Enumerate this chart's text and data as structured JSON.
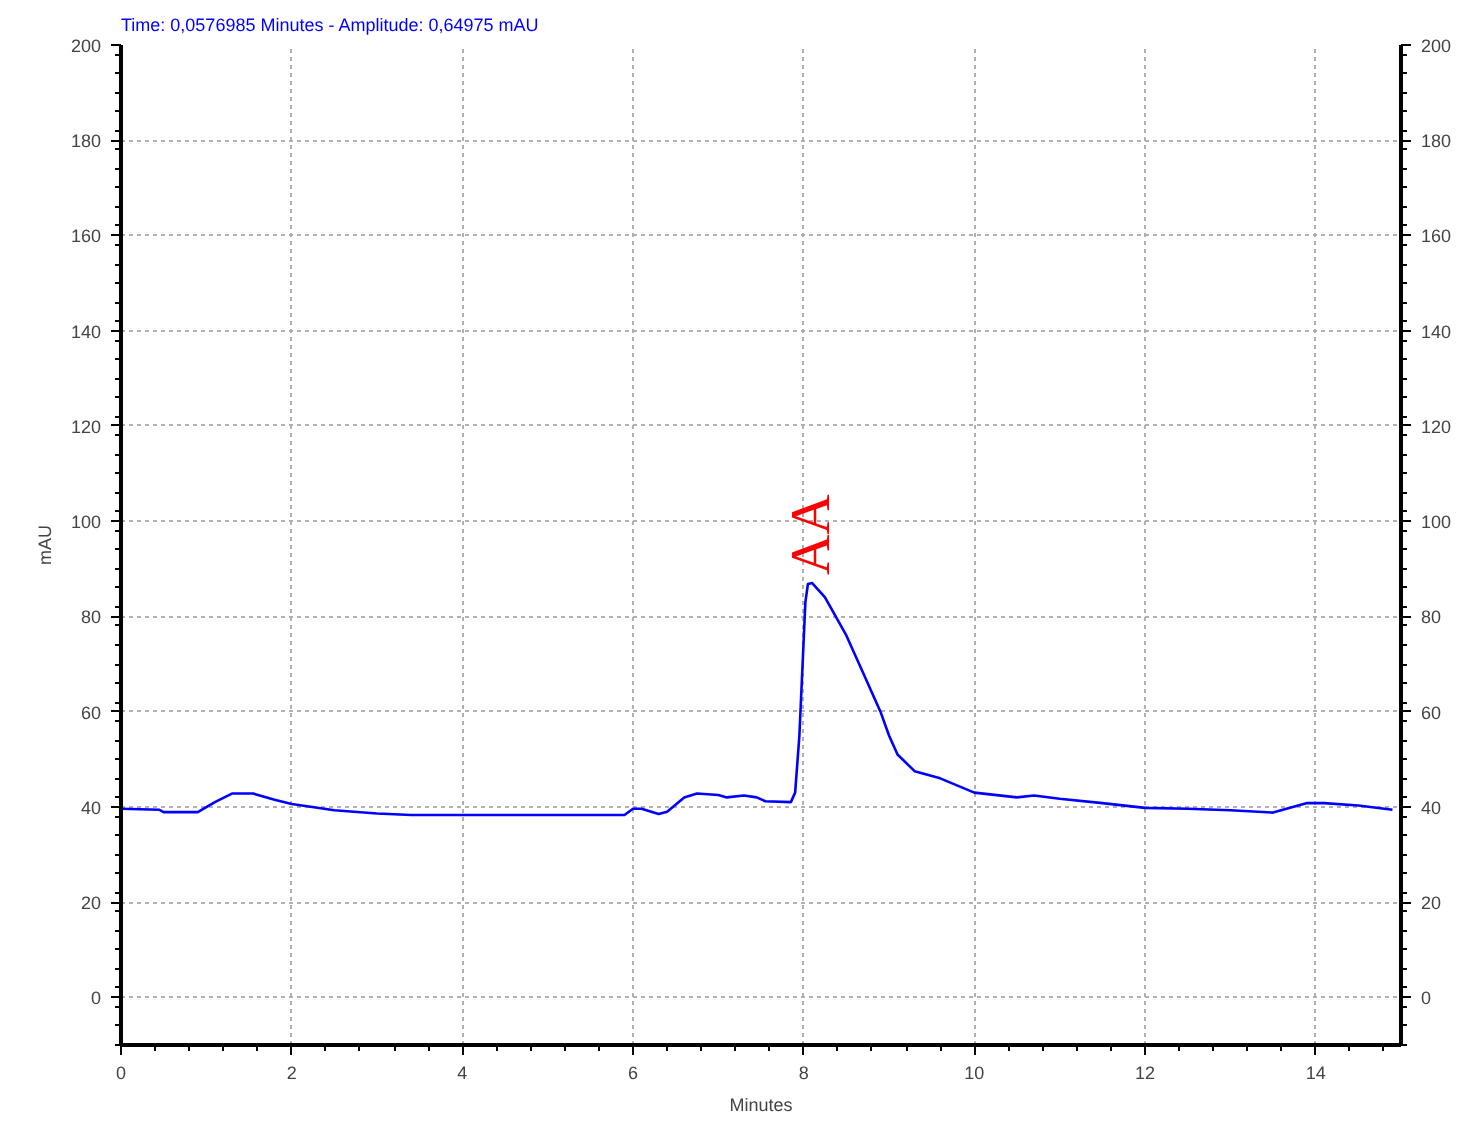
{
  "chart_data": {
    "type": "line",
    "title": "Time:  0,0576985 Minutes - Amplitude:  0,64975 mAU",
    "xlabel": "Minutes",
    "ylabel": "mAU",
    "x": [
      0,
      0.45,
      0.5,
      0.9,
      1.1,
      1.3,
      1.55,
      1.8,
      2,
      2.5,
      3,
      3.4,
      5.9,
      6,
      6.1,
      6.3,
      6.4,
      6.6,
      6.75,
      7,
      7.1,
      7.3,
      7.45,
      7.55,
      7.85,
      7.9,
      7.95,
      8.0,
      8.02,
      8.05,
      8.1,
      8.25,
      8.5,
      8.7,
      8.9,
      9.0,
      9.1,
      9.3,
      9.6,
      10,
      10.5,
      10.7,
      11,
      11.5,
      12,
      12.5,
      13,
      13.5,
      13.9,
      14.1,
      14.5,
      14.9
    ],
    "series": [
      {
        "color": "#0000ff",
        "values": [
          39.6,
          39.4,
          38.9,
          38.9,
          41,
          42.8,
          42.8,
          41.5,
          40.6,
          39.3,
          38.6,
          38.3,
          38.3,
          39.6,
          39.6,
          38.5,
          39,
          42,
          42.8,
          42.5,
          42,
          42.4,
          42,
          41.2,
          41,
          43,
          55,
          75,
          83,
          86.8,
          87,
          84,
          76,
          68,
          60,
          55,
          51,
          47.5,
          46,
          43,
          42,
          42.4,
          41.7,
          40.8,
          39.8,
          39.6,
          39.3,
          38.8,
          40.8,
          40.8,
          40.3,
          39.4
        ]
      }
    ],
    "xlim": [
      0,
      15
    ],
    "xticks": [
      0,
      2,
      4,
      6,
      8,
      10,
      12,
      14
    ],
    "ylim": [
      -10,
      200
    ],
    "yticks": [
      0,
      20,
      40,
      60,
      80,
      100,
      120,
      140,
      160,
      180,
      200
    ],
    "y2lim": [
      -10,
      200
    ],
    "y2ticks": [
      0,
      20,
      40,
      60,
      80,
      100,
      120,
      140,
      160,
      180,
      200
    ],
    "grid": true,
    "line_style": "solid",
    "marker": "none",
    "annotations": [
      {
        "text": "AA",
        "x": 8.1,
        "y": 87
      }
    ]
  }
}
